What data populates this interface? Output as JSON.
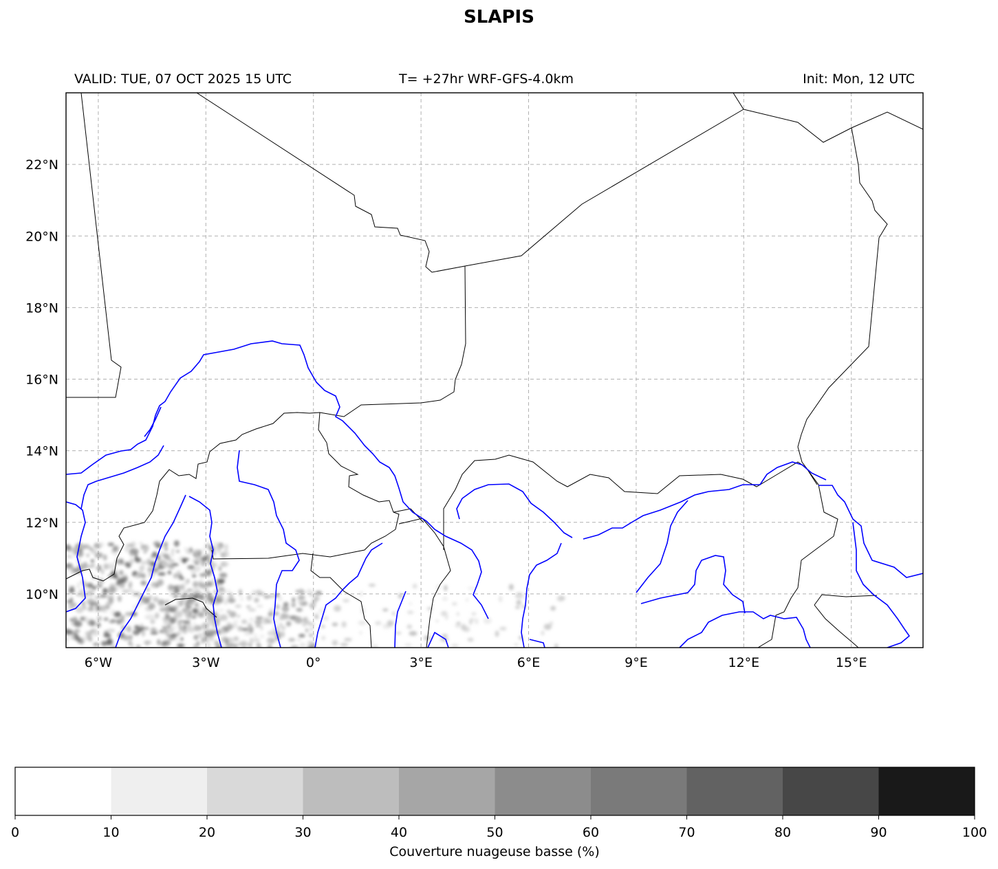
{
  "title": "SLAPIS",
  "header": {
    "valid": "VALID: TUE, 07 OCT 2025 15 UTC",
    "run": "T= +27hr WRF-GFS-4.0km",
    "init": "Init: Mon, 12 UTC"
  },
  "map": {
    "lon_range": [
      -6.9,
      17.0
    ],
    "lat_range": [
      8.5,
      24.0
    ],
    "grid": true,
    "lon_ticks": [
      "6°W",
      "3°W",
      "0°",
      "3°E",
      "6°E",
      "9°E",
      "12°E",
      "15°E"
    ],
    "lat_ticks": [
      "22°N",
      "20°N",
      "18°N",
      "16°N",
      "14°N",
      "12°N",
      "10°N"
    ],
    "border_color": "#000000",
    "river_color": "#0000ff"
  },
  "colorbar": {
    "label": "Couverture nuageuse basse (%)",
    "ticks": [
      "0",
      "10",
      "20",
      "30",
      "40",
      "50",
      "60",
      "70",
      "80",
      "90",
      "100"
    ],
    "colors": [
      "#ffffff",
      "#efefef",
      "#d9d9d9",
      "#bdbdbd",
      "#a6a6a6",
      "#8c8c8c",
      "#7a7a7a",
      "#626262",
      "#474747",
      "#191919"
    ]
  }
}
